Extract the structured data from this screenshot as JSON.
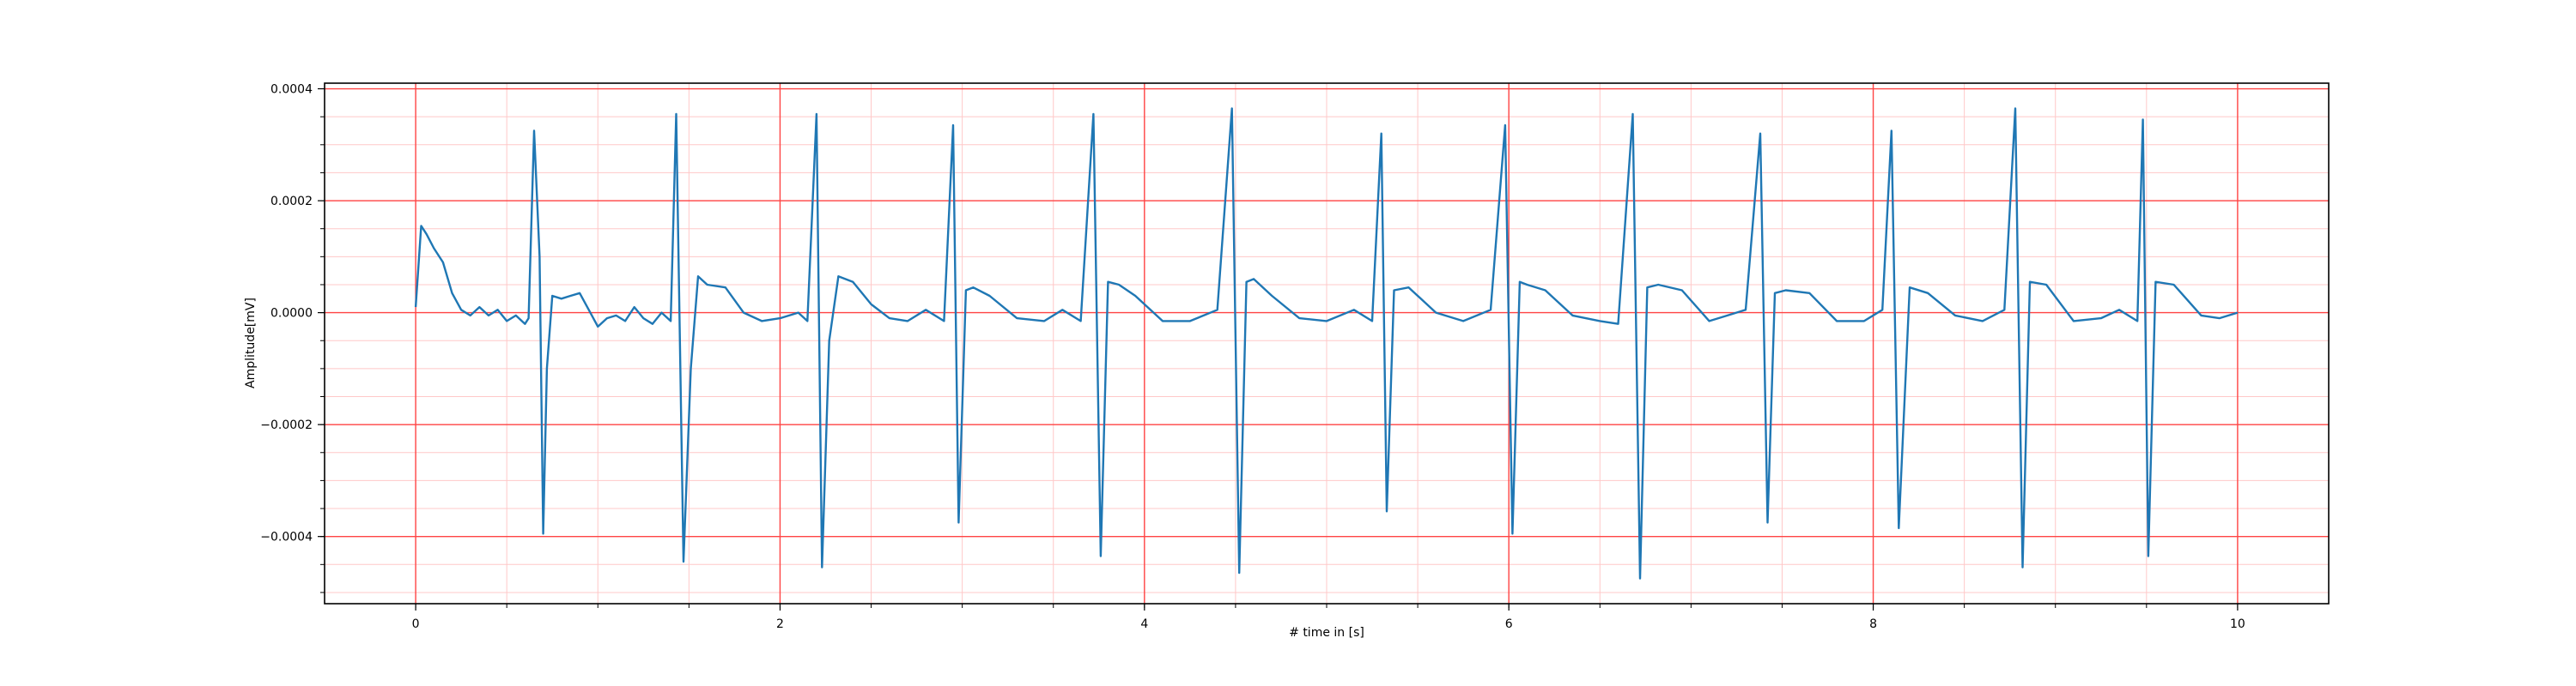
{
  "chart_data": {
    "type": "line",
    "title": "",
    "xlabel": "# time in [s]",
    "ylabel": "Amplitude[mV]",
    "xlim": [
      -0.5,
      10.5
    ],
    "ylim": [
      -0.00052,
      0.00041
    ],
    "x_ticks": [
      0,
      2,
      4,
      6,
      8,
      10
    ],
    "x_tick_labels": [
      "0",
      "2",
      "4",
      "6",
      "8",
      "10"
    ],
    "y_ticks": [
      -0.0004,
      -0.0002,
      0.0,
      0.0002,
      0.0004
    ],
    "y_tick_labels": [
      "−0.0004",
      "−0.0002",
      "0.0000",
      "0.0002",
      "0.0004"
    ],
    "grid": true,
    "major_grid_color": "#ff4444",
    "minor_grid_color": "#ffc8c8",
    "line_color": "#1f77b4",
    "series": [
      {
        "x": [
          0.0,
          0.03,
          0.06,
          0.1,
          0.15,
          0.2,
          0.25,
          0.3,
          0.35,
          0.4,
          0.45,
          0.5,
          0.55,
          0.6,
          0.62,
          0.65,
          0.68,
          0.7,
          0.72,
          0.75,
          0.8,
          0.85,
          0.9,
          0.95,
          1.0,
          1.05,
          1.1,
          1.15,
          1.2,
          1.25,
          1.3,
          1.35,
          1.4,
          1.43,
          1.47,
          1.51,
          1.55,
          1.6,
          1.7,
          1.8,
          1.9,
          2.0,
          2.1,
          2.15,
          2.2,
          2.23,
          2.27,
          2.32,
          2.4,
          2.5,
          2.6,
          2.7,
          2.8,
          2.9,
          2.95,
          2.98,
          3.02,
          3.06,
          3.15,
          3.3,
          3.45,
          3.55,
          3.65,
          3.72,
          3.76,
          3.8,
          3.86,
          3.95,
          4.1,
          4.25,
          4.4,
          4.48,
          4.52,
          4.56,
          4.6,
          4.7,
          4.85,
          5.0,
          5.15,
          5.25,
          5.3,
          5.33,
          5.37,
          5.45,
          5.6,
          5.75,
          5.9,
          5.98,
          6.02,
          6.06,
          6.1,
          6.2,
          6.35,
          6.5,
          6.6,
          6.68,
          6.72,
          6.76,
          6.82,
          6.95,
          7.1,
          7.2,
          7.3,
          7.38,
          7.42,
          7.46,
          7.52,
          7.65,
          7.8,
          7.95,
          8.05,
          8.1,
          8.14,
          8.2,
          8.3,
          8.45,
          8.6,
          8.72,
          8.78,
          8.82,
          8.86,
          8.95,
          9.1,
          9.25,
          9.35,
          9.45,
          9.48,
          9.51,
          9.55,
          9.65,
          9.8,
          9.9,
          10.0
        ],
        "y": [
          1e-05,
          0.000155,
          0.00014,
          0.000115,
          9e-05,
          3.5e-05,
          5e-06,
          -5e-06,
          1e-05,
          -5e-06,
          5e-06,
          -1.5e-05,
          -5e-06,
          -2e-05,
          -1e-05,
          0.000325,
          0.0001,
          -0.000395,
          -0.0001,
          3e-05,
          2.5e-05,
          3e-05,
          3.5e-05,
          5e-06,
          -2.5e-05,
          -1e-05,
          -5e-06,
          -1.5e-05,
          1e-05,
          -1e-05,
          -2e-05,
          0.0,
          -1.5e-05,
          0.000355,
          -0.000445,
          -0.0001,
          6.5e-05,
          5e-05,
          4.5e-05,
          0.0,
          -1.5e-05,
          -1e-05,
          0.0,
          -1.5e-05,
          0.000355,
          -0.000455,
          -5e-05,
          6.5e-05,
          5.5e-05,
          1.5e-05,
          -1e-05,
          -1.5e-05,
          5e-06,
          -1.5e-05,
          0.000335,
          -0.000375,
          4e-05,
          4.5e-05,
          3e-05,
          -1e-05,
          -1.5e-05,
          5e-06,
          -1.5e-05,
          0.000355,
          -0.000435,
          5.5e-05,
          5e-05,
          3e-05,
          -1.5e-05,
          -1.5e-05,
          5e-06,
          0.000365,
          -0.000465,
          5.5e-05,
          6e-05,
          3e-05,
          -1e-05,
          -1.5e-05,
          5e-06,
          -1.5e-05,
          0.00032,
          -0.000355,
          4e-05,
          4.5e-05,
          0.0,
          -1.5e-05,
          5e-06,
          0.000335,
          -0.000395,
          5.5e-05,
          5e-05,
          4e-05,
          -5e-06,
          -1.5e-05,
          -2e-05,
          0.000355,
          -0.000475,
          4.5e-05,
          5e-05,
          4e-05,
          -1.5e-05,
          -5e-06,
          5e-06,
          0.00032,
          -0.000375,
          3.5e-05,
          4e-05,
          3.5e-05,
          -1.5e-05,
          -1.5e-05,
          5e-06,
          0.000325,
          -0.000385,
          4.5e-05,
          3.5e-05,
          -5e-06,
          -1.5e-05,
          5e-06,
          0.000365,
          -0.000455,
          5.5e-05,
          5e-05,
          -1.5e-05,
          -1e-05,
          5e-06,
          -1.5e-05,
          0.000345,
          -0.000435,
          5.5e-05,
          5e-05,
          -5e-06,
          -1e-05,
          0.0
        ]
      }
    ]
  }
}
